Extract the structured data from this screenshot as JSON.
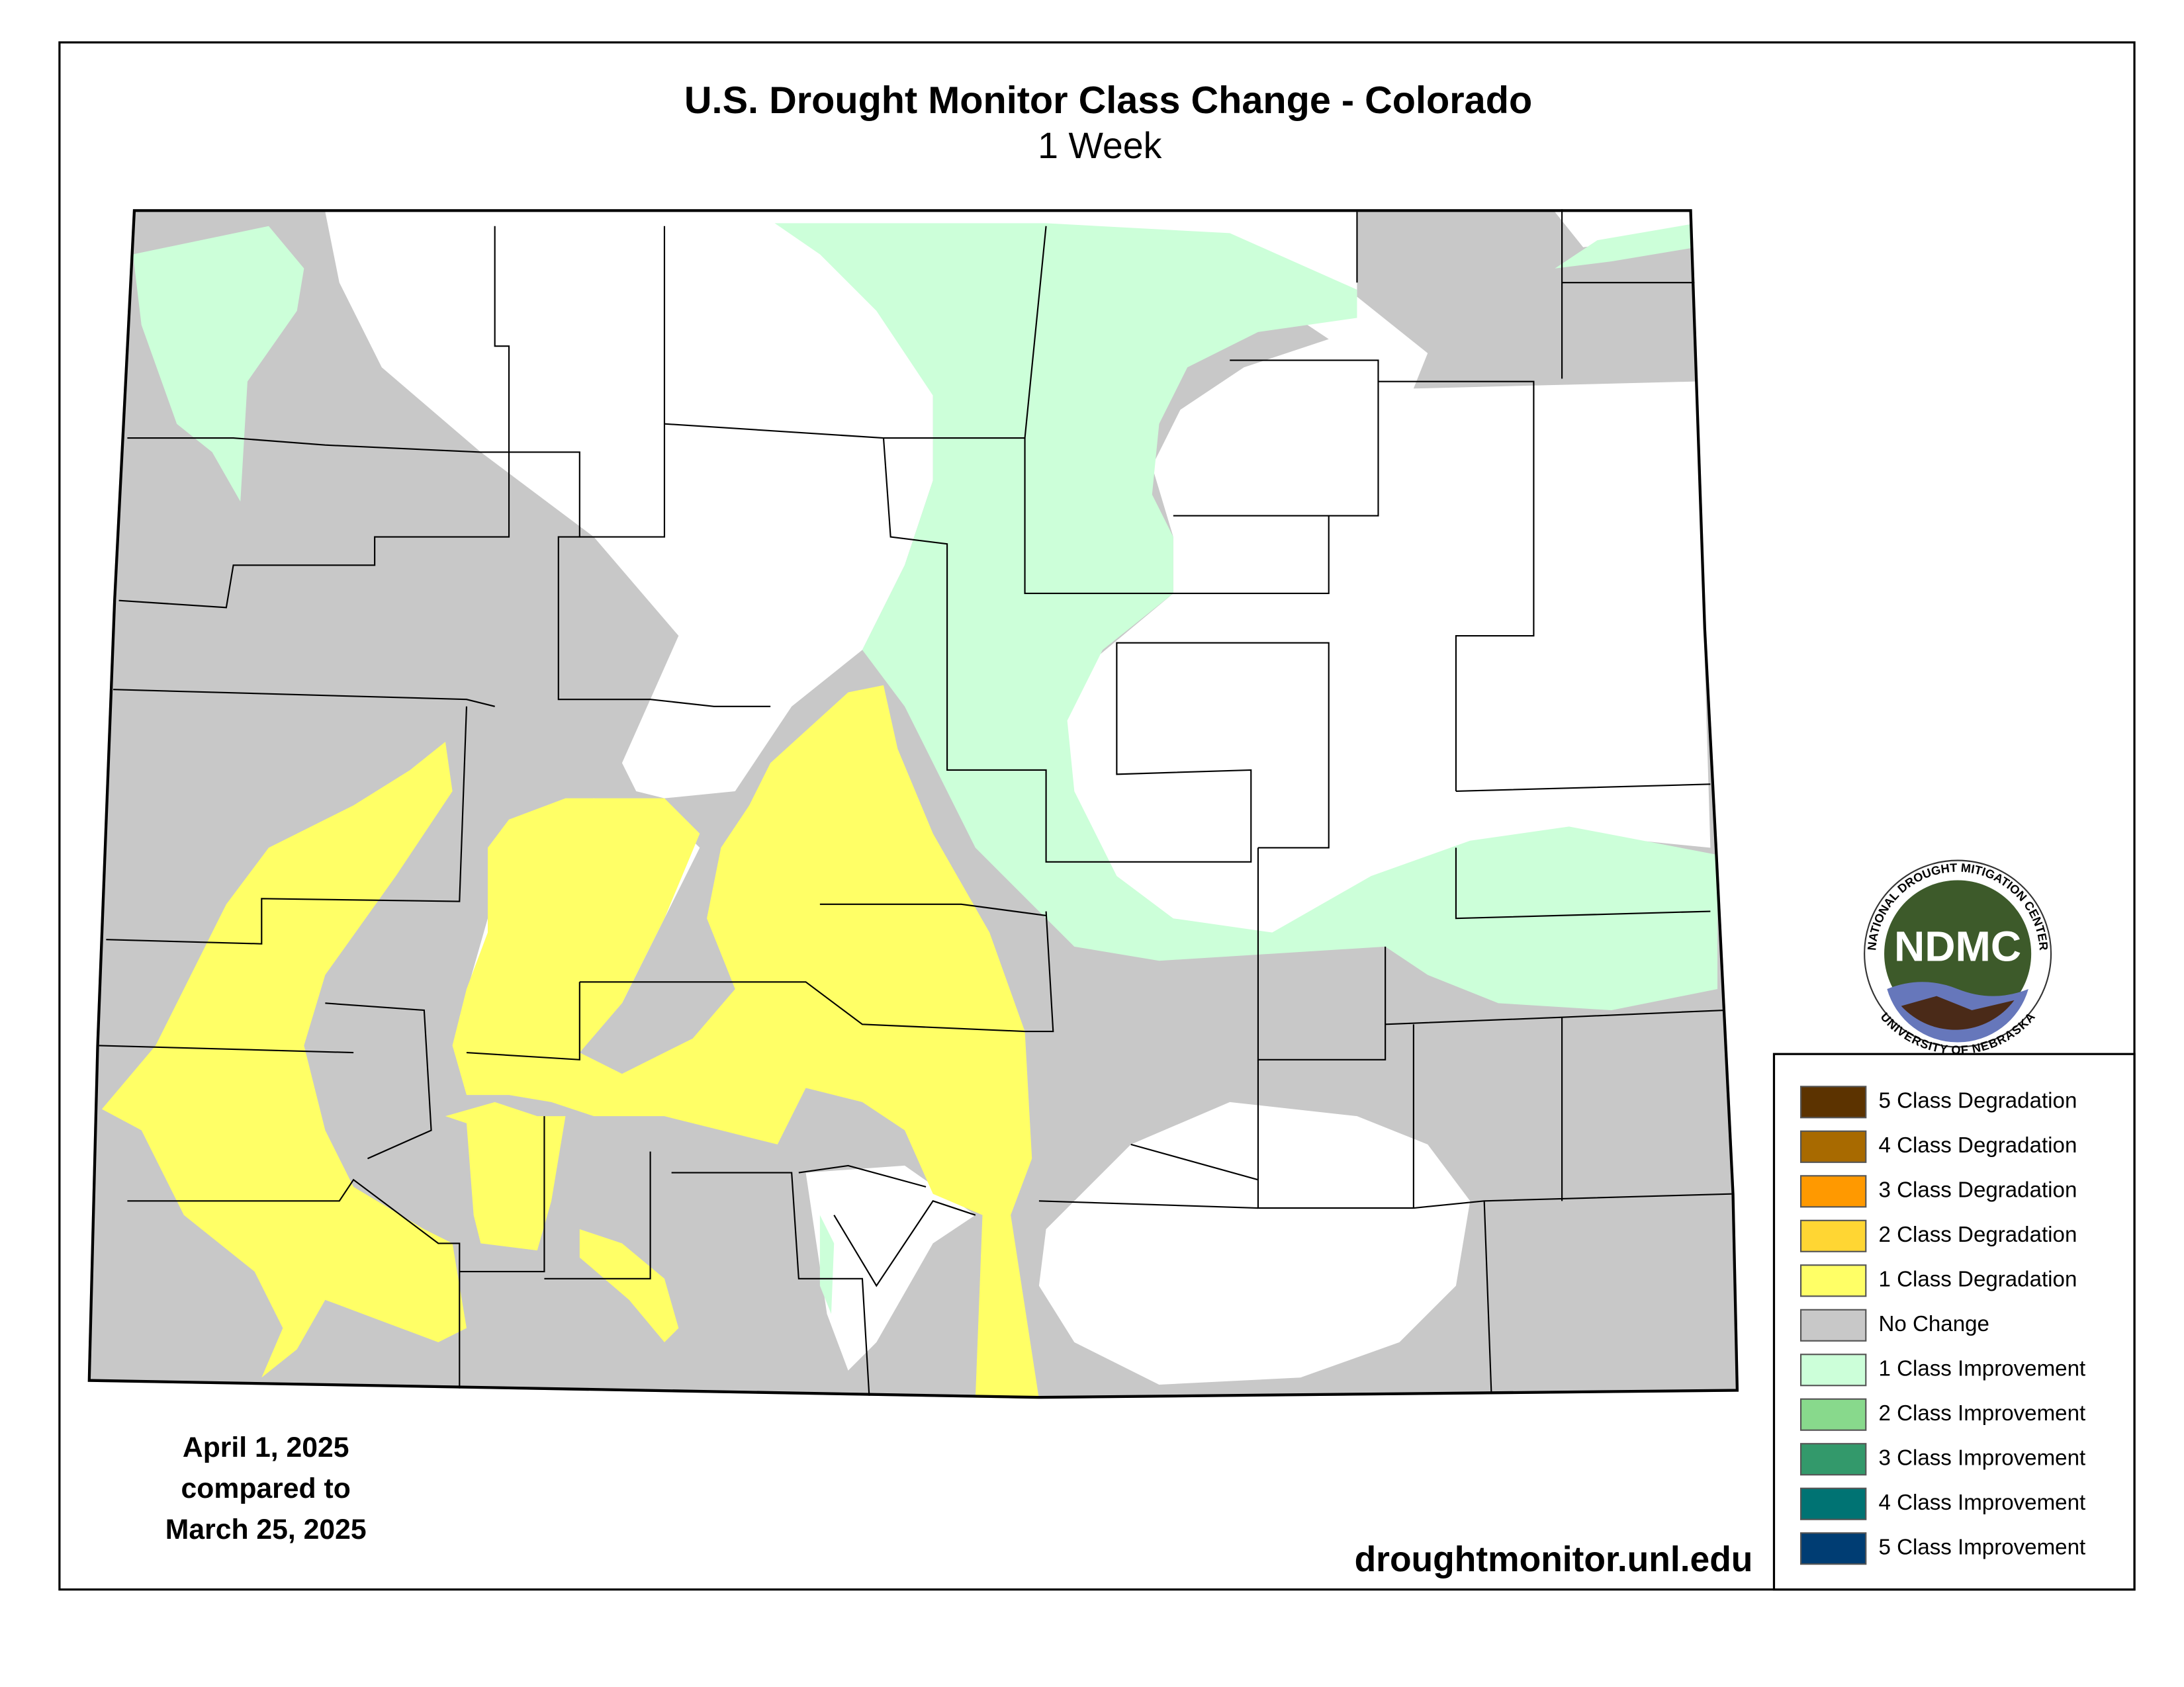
{
  "header": {
    "title": "U.S. Drought Monitor Class Change - Colorado",
    "subtitle": "1 Week"
  },
  "date_note": [
    "April 1, 2025",
    "compared to",
    "March 25, 2025"
  ],
  "url": "droughtmonitor.unl.edu",
  "logo": {
    "abbr": "NDMC",
    "top_ring": "NATIONAL DROUGHT MITIGATION CENTER",
    "bottom_ring": "UNIVERSITY OF NEBRASKA"
  },
  "legend": [
    {
      "label": "5 Class Degradation",
      "color": "#5c3300"
    },
    {
      "label": "4 Class Degradation",
      "color": "#a86a00"
    },
    {
      "label": "3 Class Degradation",
      "color": "#ff9900"
    },
    {
      "label": "2 Class Degradation",
      "color": "#ffd633"
    },
    {
      "label": "1 Class Degradation",
      "color": "#ffff66"
    },
    {
      "label": "No Change",
      "color": "#c8c8c8"
    },
    {
      "label": "1 Class Improvement",
      "color": "#ccffd9"
    },
    {
      "label": "2 Class Improvement",
      "color": "#88d98c"
    },
    {
      "label": "3 Class Improvement",
      "color": "#33996b"
    },
    {
      "label": "4 Class Improvement",
      "color": "#007373"
    },
    {
      "label": "5 Class Improvement",
      "color": "#003d73"
    }
  ]
}
